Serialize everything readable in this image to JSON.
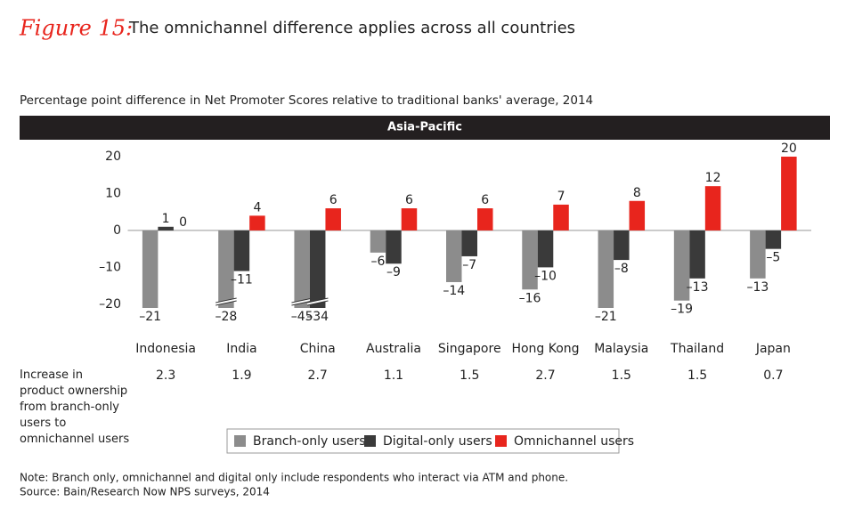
{
  "chart_data": {
    "type": "bar",
    "figure_label": "Figure 15:",
    "title": "The omnichannel difference applies across all countries",
    "subtitle": "Percentage point difference in Net Promoter Scores relative to traditional banks' average, 2014",
    "panel_title": "Asia-Pacific",
    "categories": [
      "Indonesia",
      "India",
      "China",
      "Australia",
      "Singapore",
      "Hong Kong",
      "Malaysia",
      "Thailand",
      "Japan"
    ],
    "series": [
      {
        "name": "Branch-only users",
        "color": "#8c8c8c",
        "values": [
          -21,
          -28,
          -45,
          -6,
          -14,
          -16,
          -21,
          -19,
          -13
        ],
        "value_labels": [
          "–21",
          "–28",
          "–45",
          "–6",
          "–14",
          "–16",
          "–21",
          "–19",
          "–13"
        ]
      },
      {
        "name": "Digital-only users",
        "color": "#3a3a3a",
        "values": [
          1,
          -11,
          -34,
          -9,
          -7,
          -10,
          -8,
          -13,
          -5
        ],
        "value_labels": [
          "1",
          "–11",
          "–34",
          "–9",
          "–7",
          "–10",
          "–8",
          "–13",
          "–5"
        ]
      },
      {
        "name": "Omnichannel users",
        "color": "#e8251d",
        "values": [
          0,
          4,
          6,
          6,
          6,
          7,
          8,
          12,
          20
        ]
      }
    ],
    "ylim": [
      -21,
      20
    ],
    "yticks": [
      {
        "value": -20,
        "label": "–20"
      },
      {
        "value": -10,
        "label": "–10"
      },
      0,
      10,
      20
    ],
    "row_label": "Increase in product ownership from branch-only users to omnichannel users",
    "row_values": [
      2.3,
      1.9,
      2.7,
      1.1,
      1.5,
      2.7,
      1.5,
      1.5,
      0.7
    ],
    "note": "Note: Branch only, omnichannel and digital only include respondents who interact via ATM and phone.",
    "source": "Source: Bain/Research Now NPS surveys, 2014"
  }
}
